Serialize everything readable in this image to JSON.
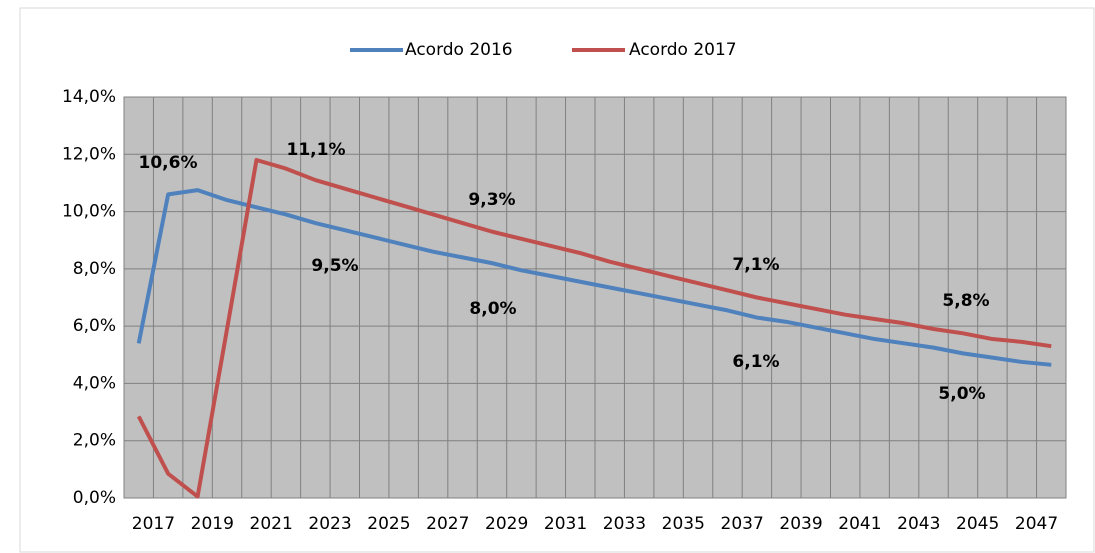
{
  "chart_data": {
    "type": "line",
    "categories": [
      "2017",
      null,
      "2019",
      null,
      "2021",
      null,
      "2023",
      null,
      "2025",
      null,
      "2027",
      null,
      "2029",
      null,
      "2031",
      null,
      "2033",
      null,
      "2035",
      null,
      "2037",
      null,
      "2039",
      null,
      "2041",
      null,
      "2043",
      null,
      "2045",
      null,
      "2047",
      null
    ],
    "series": [
      {
        "name": "Acordo 2016",
        "color": "#4f81bd",
        "values": [
          5.4,
          10.6,
          10.75,
          10.4,
          10.15,
          9.9,
          9.6,
          9.35,
          9.1,
          8.85,
          8.6,
          8.4,
          8.2,
          7.95,
          7.75,
          7.55,
          7.35,
          7.15,
          6.95,
          6.75,
          6.55,
          6.3,
          6.15,
          5.95,
          5.75,
          5.55,
          5.4,
          5.25,
          5.05,
          4.9,
          4.75,
          4.65
        ]
      },
      {
        "name": "Acordo 2017",
        "color": "#c0504d",
        "values": [
          2.85,
          0.85,
          0.05,
          5.9,
          11.8,
          11.5,
          11.1,
          10.8,
          10.5,
          10.2,
          9.9,
          9.6,
          9.3,
          9.05,
          8.8,
          8.55,
          8.25,
          8.0,
          7.75,
          7.5,
          7.25,
          7.0,
          6.8,
          6.6,
          6.4,
          6.25,
          6.1,
          5.9,
          5.75,
          5.55,
          5.45,
          5.3
        ]
      }
    ],
    "annotations": [
      "10,6%",
      "11,1%",
      "9,3%",
      "9,5%",
      "8,0%",
      "7,1%",
      "6,1%",
      "5,8%",
      "5,0%"
    ],
    "ylim": [
      0,
      14
    ],
    "yticks": [
      {
        "value": 0,
        "label": "0,0%"
      },
      {
        "value": 2,
        "label": "2,0%"
      },
      {
        "value": 4,
        "label": "4,0%"
      },
      {
        "value": 6,
        "label": "6,0%"
      },
      {
        "value": 8,
        "label": "8,0%"
      },
      {
        "value": 10,
        "label": "10,0%"
      },
      {
        "value": 12,
        "label": "12,0%"
      },
      {
        "value": 14,
        "label": "14,0%"
      }
    ],
    "grid": true,
    "legend": "top"
  }
}
